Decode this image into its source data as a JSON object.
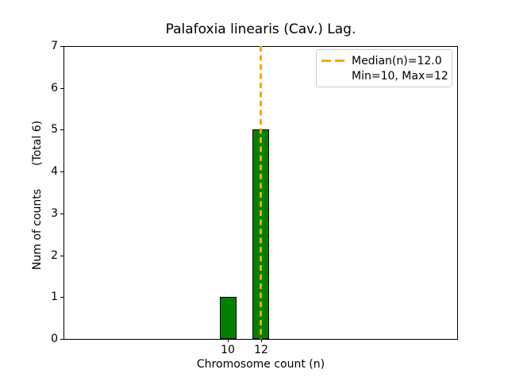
{
  "chart_data": {
    "type": "bar",
    "title": "Palafoxia linearis (Cav.) Lag.",
    "xlabel": "Chromosome count (n)",
    "ylabel": "Num of counts",
    "ylabel_annotation": "(Total 6)",
    "categories": [
      10,
      12
    ],
    "values": [
      1,
      5
    ],
    "total_counts": 6,
    "bar_color": "#008000",
    "bar_edge_color": "#000000",
    "bar_width_units": 1,
    "xlim": [
      0,
      24
    ],
    "ylim": [
      0,
      7
    ],
    "yticks": [
      0,
      1,
      2,
      3,
      4,
      5,
      6,
      7
    ],
    "xticks": [
      10,
      12
    ],
    "median": 12.0,
    "min": 10,
    "max": 12,
    "median_line": {
      "x": 12,
      "color": "#FFA500",
      "style": "dashed",
      "width_pt": 2
    },
    "legend": {
      "position": "upper right",
      "entries": [
        "Median(n)=12.0",
        "Min=10, Max=12"
      ]
    },
    "grid": false,
    "background": "#ffffff"
  }
}
